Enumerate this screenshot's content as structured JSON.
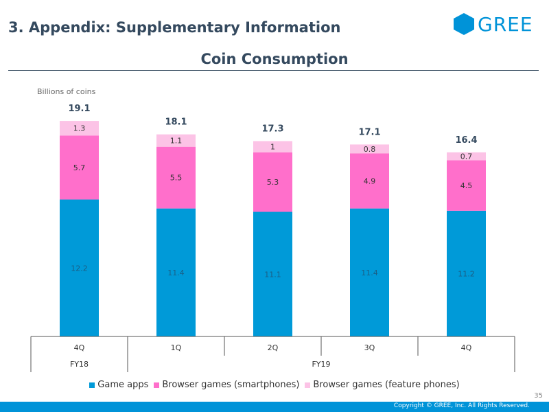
{
  "header": {
    "slide_title": "3. Appendix: Supplementary Information",
    "logo_text": "GREE"
  },
  "chart_data": {
    "type": "bar",
    "stacked": true,
    "title": "Coin Consumption",
    "ylabel": "Billions of coins",
    "categories": [
      "4Q",
      "1Q",
      "2Q",
      "3Q",
      "4Q"
    ],
    "category_groups": [
      {
        "label": "FY18",
        "span": 1
      },
      {
        "label": "FY19",
        "span": 4
      }
    ],
    "series": [
      {
        "name": "Game apps",
        "color": "#009ad8",
        "values": [
          12.2,
          11.4,
          11.1,
          11.4,
          11.2
        ]
      },
      {
        "name": "Browser games (smartphones)",
        "color": "#ff6fcb",
        "values": [
          5.7,
          5.5,
          5.3,
          4.9,
          4.5
        ]
      },
      {
        "name": "Browser games (feature phones)",
        "color": "#fcc3e6",
        "values": [
          1.3,
          1.1,
          1.0,
          0.8,
          0.7
        ]
      }
    ],
    "totals": [
      19.1,
      18.1,
      17.3,
      17.1,
      16.4
    ],
    "ylim": [
      0,
      20
    ],
    "grid": false,
    "legend_position": "bottom"
  },
  "footer": {
    "page_number": "35",
    "copyright": "Copyright © GREE, Inc. All Rights Reserved."
  }
}
